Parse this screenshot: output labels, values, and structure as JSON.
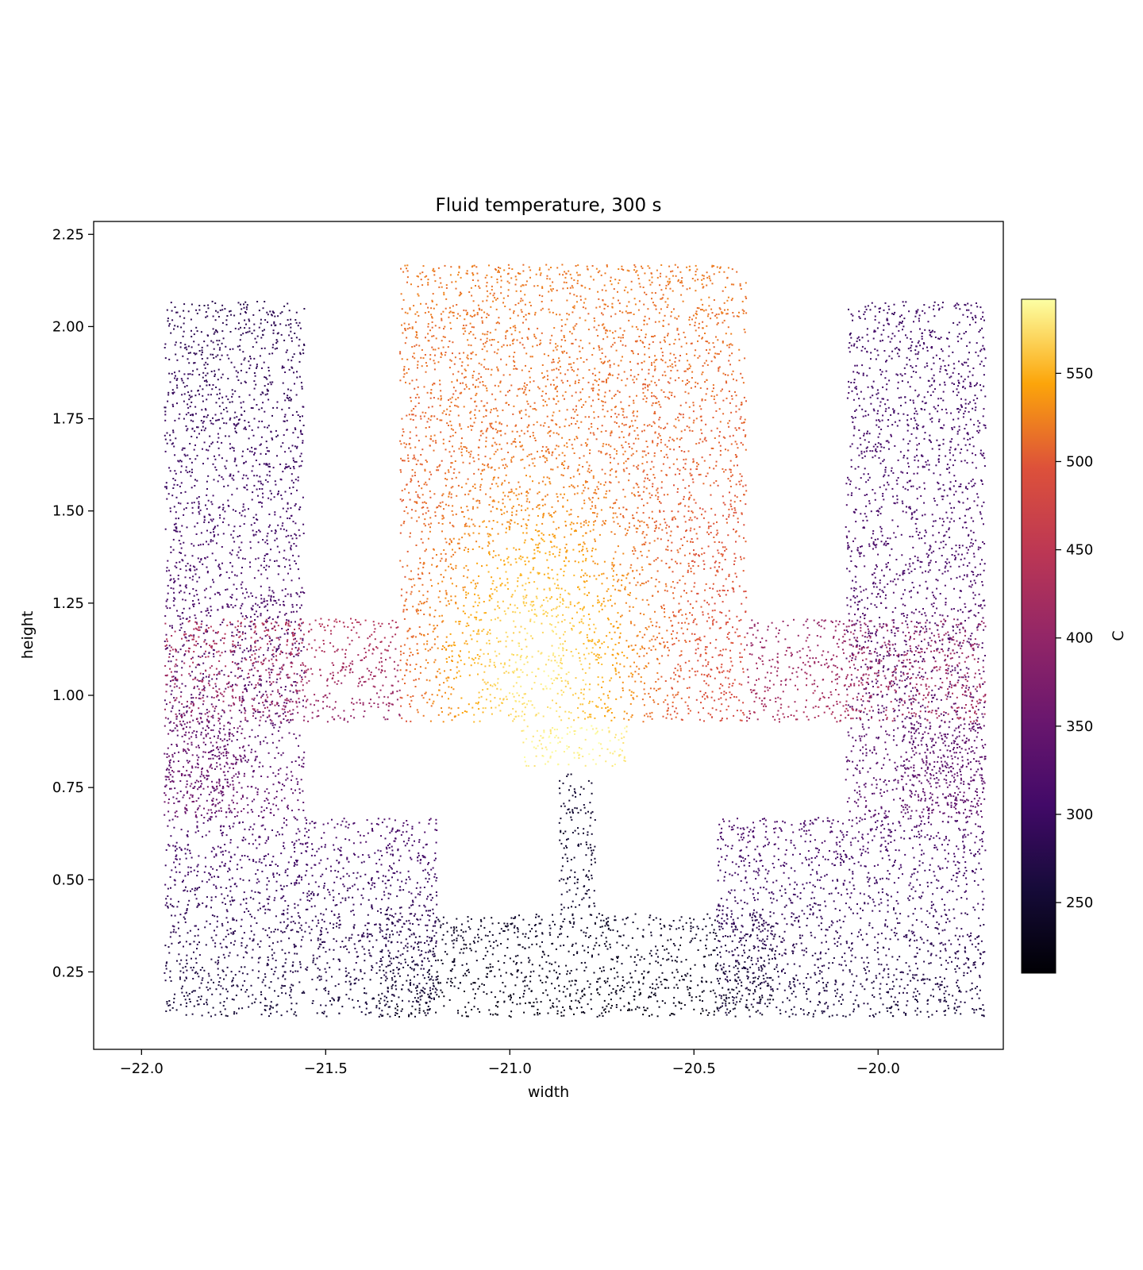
{
  "chart_data": {
    "type": "scatter",
    "title": "Fluid temperature, 300 s",
    "xlabel": "width",
    "ylabel": "height",
    "xlim": [
      -22.13,
      -19.66
    ],
    "ylim": [
      0.04,
      2.285
    ],
    "xticks": [
      -22.0,
      -21.5,
      -21.0,
      -20.5,
      -20.0
    ],
    "xtick_labels": [
      "−22.0",
      "−21.5",
      "−21.0",
      "−20.5",
      "−20.0"
    ],
    "yticks": [
      0.25,
      0.5,
      0.75,
      1.0,
      1.25,
      1.5,
      1.75,
      2.0,
      2.25
    ],
    "ytick_labels": [
      "0.25",
      "0.50",
      "0.75",
      "1.00",
      "1.25",
      "1.50",
      "1.75",
      "2.00",
      "2.25"
    ],
    "colormap": "inferno",
    "colorbar": {
      "label": "C",
      "range": [
        210,
        592
      ],
      "ticks": [
        250,
        300,
        350,
        400,
        450,
        500,
        550
      ],
      "tick_labels": [
        "250",
        "300",
        "350",
        "400",
        "450",
        "500",
        "550"
      ]
    },
    "grid": false,
    "legend": "none",
    "regions": [
      {
        "name": "left-column",
        "x": [
          -21.94,
          -21.56
        ],
        "y": [
          0.67,
          2.07
        ],
        "temp": [
          340,
          280
        ]
      },
      {
        "name": "right-column",
        "x": [
          -20.09,
          -19.71
        ],
        "y": [
          0.67,
          2.07
        ],
        "temp": [
          335,
          300
        ]
      },
      {
        "name": "central-tank",
        "x": [
          -21.3,
          -20.36
        ],
        "y": [
          0.93,
          2.17
        ],
        "temp": [
          480,
          520
        ],
        "hot_spot": {
          "x": -20.93,
          "y": 1.05,
          "temp": 580
        }
      },
      {
        "name": "left-band",
        "x": [
          -21.94,
          -21.3
        ],
        "y": [
          0.93,
          1.21
        ],
        "temp": [
          400,
          440
        ]
      },
      {
        "name": "right-band",
        "x": [
          -20.36,
          -19.71
        ],
        "y": [
          0.93,
          1.21
        ],
        "temp": [
          430,
          400
        ]
      },
      {
        "name": "left-side-wall",
        "x": [
          -21.94,
          -21.72
        ],
        "y": [
          0.67,
          0.93
        ],
        "temp": [
          360,
          360
        ]
      },
      {
        "name": "right-side-wall",
        "x": [
          -19.94,
          -19.71
        ],
        "y": [
          0.67,
          0.93
        ],
        "temp": [
          345,
          345
        ]
      },
      {
        "name": "hot-block",
        "x": [
          -20.97,
          -20.68
        ],
        "y": [
          0.81,
          0.92
        ],
        "temp": [
          585,
          585
        ]
      },
      {
        "name": "central-stem",
        "x": [
          -20.87,
          -20.77
        ],
        "y": [
          0.42,
          0.79
        ],
        "temp": [
          250,
          250
        ]
      },
      {
        "name": "bottom-left-block",
        "x": [
          -21.94,
          -21.2
        ],
        "y": [
          0.13,
          0.67
        ],
        "temp": [
          255,
          320
        ]
      },
      {
        "name": "bottom-right-block",
        "x": [
          -20.44,
          -19.71
        ],
        "y": [
          0.13,
          0.67
        ],
        "temp": [
          260,
          320
        ]
      },
      {
        "name": "bottom-channel",
        "x": [
          -21.2,
          -20.44
        ],
        "y": [
          0.13,
          0.41
        ],
        "temp": [
          225,
          245
        ]
      },
      {
        "name": "left-inner-column",
        "x": [
          -21.36,
          -21.2
        ],
        "y": [
          0.13,
          0.41
        ],
        "temp": [
          230,
          285
        ]
      },
      {
        "name": "right-inner-column",
        "x": [
          -20.44,
          -20.28
        ],
        "y": [
          0.13,
          0.41
        ],
        "temp": [
          230,
          285
        ]
      }
    ]
  }
}
